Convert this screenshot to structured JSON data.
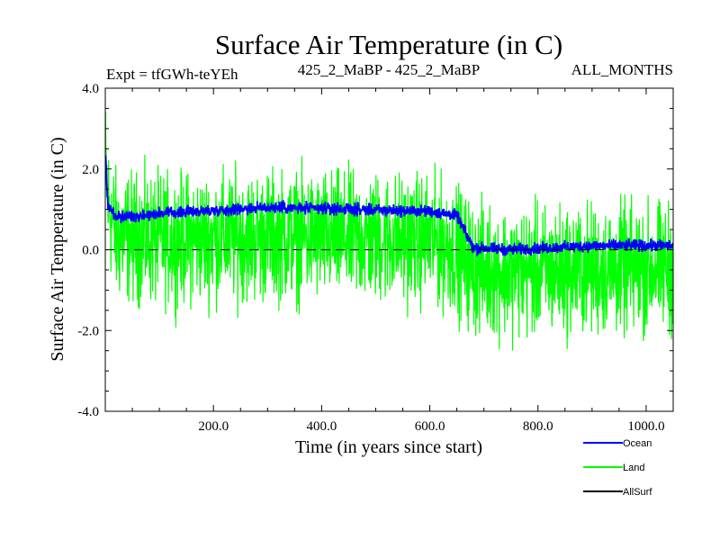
{
  "chart_data": {
    "type": "line",
    "title": "Surface Air Temperature (in C)",
    "subtitle_left": "Expt = tfGWh-teYEh",
    "subtitle_center": "425_2_MaBP - 425_2_MaBP",
    "subtitle_right": "ALL_MONTHS",
    "xlabel": "Time (in years since start)",
    "ylabel": "Surface Air Temperature (in C)",
    "xlim": [
      0,
      1050
    ],
    "ylim": [
      -4.0,
      4.0
    ],
    "x_ticks": [
      200,
      400,
      600,
      800,
      1000
    ],
    "x_tick_labels": [
      "200.0",
      "400.0",
      "600.0",
      "800.0",
      "1000.0"
    ],
    "y_ticks": [
      -4,
      -2,
      0,
      2,
      4
    ],
    "y_tick_labels": [
      "-4.0",
      "-2.0",
      "0.0",
      "2.0",
      "4.0"
    ],
    "zero_line": 0.0,
    "series": [
      {
        "name": "Land",
        "color": "#00ff00",
        "noise_amplitude": 1.1,
        "knots_x": [
          0,
          5,
          20,
          100,
          300,
          600,
          650,
          680,
          750,
          900,
          1050
        ],
        "knots_y": [
          2.2,
          1.2,
          0.35,
          0.25,
          0.35,
          0.25,
          0.0,
          -0.45,
          -0.55,
          -0.5,
          -0.45
        ]
      },
      {
        "name": "Ocean",
        "color": "#0000ff",
        "noise_amplitude": 0.1,
        "knots_x": [
          0,
          5,
          20,
          100,
          300,
          600,
          650,
          680,
          750,
          900,
          1050
        ],
        "knots_y": [
          2.4,
          1.1,
          0.8,
          0.9,
          1.05,
          0.95,
          0.85,
          0.05,
          0.0,
          0.1,
          0.1
        ]
      },
      {
        "name": "AllSurf",
        "color": "#000000"
      }
    ],
    "legend": [
      "Ocean",
      "Land",
      "AllSurf"
    ],
    "legend_position": "bottom-right"
  }
}
